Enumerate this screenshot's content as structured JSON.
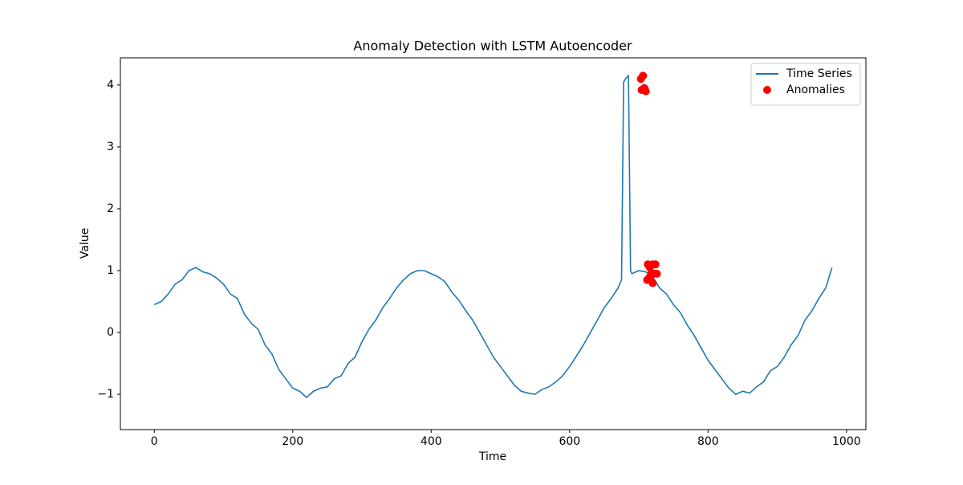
{
  "chart_data": {
    "type": "line",
    "title": "Anomaly Detection with LSTM Autoencoder",
    "xlabel": "Time",
    "ylabel": "Value",
    "xlim": [
      -49,
      1028
    ],
    "ylim": [
      -1.57,
      4.44
    ],
    "xticks": [
      0,
      200,
      400,
      600,
      800,
      1000
    ],
    "yticks": [
      {
        "value": -1,
        "label": "−1"
      },
      0,
      1,
      2,
      3,
      4
    ],
    "legend": "upper right",
    "series": [
      {
        "name": "Time Series",
        "color": "#1f77b4",
        "type": "line",
        "x": [
          0,
          10,
          20,
          30,
          40,
          50,
          60,
          70,
          80,
          90,
          100,
          110,
          120,
          130,
          140,
          150,
          160,
          170,
          180,
          190,
          200,
          210,
          220,
          230,
          240,
          250,
          260,
          270,
          280,
          290,
          300,
          310,
          320,
          330,
          340,
          350,
          360,
          370,
          380,
          390,
          400,
          410,
          420,
          430,
          440,
          450,
          460,
          470,
          480,
          490,
          500,
          510,
          520,
          530,
          540,
          550,
          560,
          570,
          580,
          590,
          600,
          610,
          620,
          630,
          640,
          650,
          660,
          670,
          675,
          678,
          682,
          685,
          688,
          690,
          700,
          710,
          720,
          730,
          740,
          750,
          760,
          770,
          780,
          790,
          800,
          810,
          820,
          830,
          840,
          850,
          860,
          870,
          880,
          890,
          900,
          910,
          920,
          930,
          940,
          950,
          960,
          970,
          979
        ],
        "values": [
          0.45,
          0.5,
          0.62,
          0.78,
          0.85,
          1.0,
          1.05,
          0.98,
          0.95,
          0.88,
          0.78,
          0.62,
          0.55,
          0.3,
          0.15,
          0.05,
          -0.2,
          -0.35,
          -0.6,
          -0.75,
          -0.9,
          -0.95,
          -1.05,
          -0.95,
          -0.9,
          -0.88,
          -0.75,
          -0.7,
          -0.5,
          -0.4,
          -0.15,
          0.05,
          0.2,
          0.4,
          0.55,
          0.72,
          0.85,
          0.95,
          1.0,
          1.0,
          0.95,
          0.9,
          0.82,
          0.65,
          0.52,
          0.35,
          0.2,
          0.0,
          -0.2,
          -0.4,
          -0.55,
          -0.7,
          -0.85,
          -0.95,
          -0.98,
          -1.0,
          -0.92,
          -0.88,
          -0.8,
          -0.7,
          -0.55,
          -0.38,
          -0.2,
          0.0,
          0.2,
          0.4,
          0.55,
          0.72,
          0.85,
          4.05,
          4.12,
          4.15,
          1.0,
          0.95,
          1.0,
          0.98,
          0.9,
          0.72,
          0.62,
          0.45,
          0.32,
          0.12,
          -0.05,
          -0.25,
          -0.45,
          -0.6,
          -0.75,
          -0.9,
          -1.0,
          -0.95,
          -0.98,
          -0.88,
          -0.8,
          -0.62,
          -0.55,
          -0.4,
          -0.2,
          -0.05,
          0.2,
          0.35,
          0.55,
          0.72,
          1.05
        ]
      },
      {
        "name": "Anomalies",
        "color": "#ff0000",
        "type": "scatter",
        "x": [
          703,
          706,
          704,
          708,
          710,
          713,
          716,
          720,
          724,
          718,
          722,
          726,
          712,
          716,
          720
        ],
        "values": [
          4.1,
          4.15,
          3.92,
          3.95,
          3.9,
          1.1,
          1.05,
          1.1,
          1.1,
          0.95,
          0.95,
          0.95,
          0.85,
          0.9,
          0.8
        ]
      }
    ]
  }
}
